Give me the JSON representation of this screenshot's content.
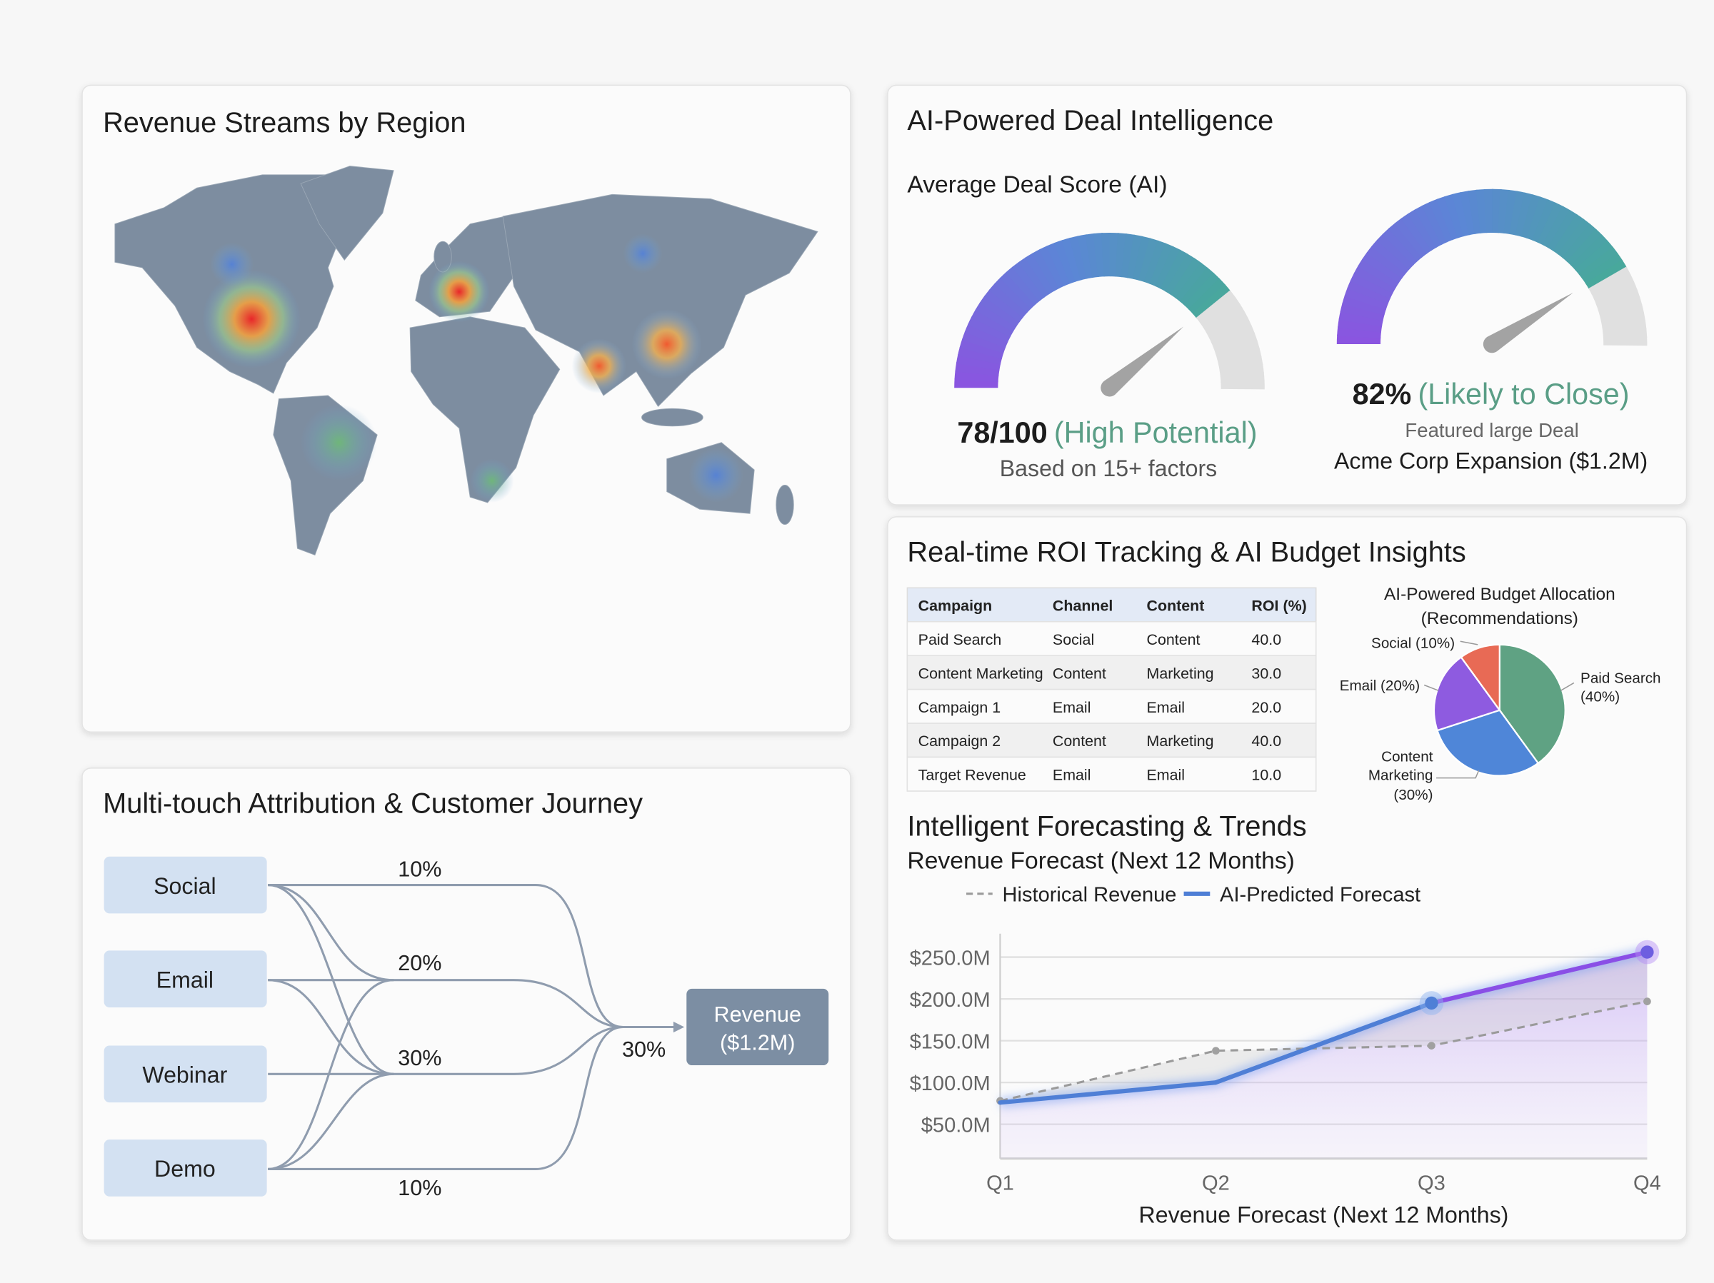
{
  "map_panel": {
    "title": "Revenue Streams by Region"
  },
  "deal_panel": {
    "title": "AI-Powered Deal Intelligence",
    "subtitle": "Average Deal Score (AI)",
    "gauges": [
      {
        "value": 78,
        "max": 100,
        "score_label": "78/100",
        "status_label": "(High Potential)",
        "caption": "Based on 15+ factors"
      },
      {
        "value": 82,
        "max": 100,
        "score_label": "82%",
        "status_label": "(Likely to Close)",
        "caption": "Featured large Deal",
        "deal_name": "Acme Corp Expansion ($1.2M)"
      }
    ],
    "colors": {
      "gradient_start": "#8a55e0",
      "gradient_mid": "#5b86d6",
      "gradient_end": "#48a89c",
      "track": "#e0e0e0",
      "status": "#5a9e86"
    }
  },
  "roi_panel": {
    "title": "Real-time ROI Tracking & AI Budget Insights",
    "table": {
      "headers": [
        "Campaign",
        "Channel",
        "Content",
        "ROI (%)"
      ],
      "rows": [
        [
          "Paid Search",
          "Social",
          "Content",
          "40.0"
        ],
        [
          "Content Marketing",
          "Content",
          "Marketing",
          "30.0"
        ],
        [
          "Campaign 1",
          "Email",
          "Email",
          "20.0"
        ],
        [
          "Campaign 2",
          "Content",
          "Marketing",
          "40.0"
        ],
        [
          "Target Revenue",
          "Email",
          "Email",
          "10.0"
        ]
      ]
    },
    "forecast_title": "Intelligent Forecasting & Trends",
    "forecast_subtitle": "Revenue Forecast (Next 12 Months)"
  },
  "attribution_panel": {
    "title": "Multi-touch Attribution & Customer Journey",
    "sources": [
      "Social",
      "Email",
      "Webinar",
      "Demo"
    ],
    "percent_labels": [
      "10%",
      "20%",
      "30%",
      "10%"
    ],
    "merge_label": "30%",
    "target_line1": "Revenue",
    "target_line2": "($1.2M)"
  },
  "chart_data": [
    {
      "type": "pie",
      "title": "AI-Powered Budget Allocation (Recommendations)",
      "title_line1": "AI-Powered Budget Allocation",
      "title_line2": "(Recommendations)",
      "slices": [
        {
          "label": "Paid Search",
          "label_pct": "(40%)",
          "value": 40,
          "color": "#5fa283"
        },
        {
          "label": "Content Marketing",
          "label_pct": "(30%)",
          "value": 30,
          "color": "#4f86d8"
        },
        {
          "label": "Email",
          "label_pct": "(20%)",
          "value": 20,
          "color": "#8e5be0"
        },
        {
          "label": "Social",
          "label_pct": "(10%)",
          "value": 10,
          "color": "#e86a55"
        }
      ],
      "slice_labels": [
        "Paid Search",
        "(40%)",
        "Content",
        "Marketing",
        "(30%)",
        "Email (20%)",
        "Social (10%)"
      ]
    },
    {
      "type": "line",
      "title": "Revenue Forecast (Next 12 Months)",
      "xlabel": "Revenue Forecast (Next 12 Months)",
      "ylabel": "",
      "categories": [
        "Q1",
        "Q2",
        "Q3",
        "Q4"
      ],
      "y_ticks": [
        "$50.0M",
        "$100.0M",
        "$150.0M",
        "$200.0M",
        "$250.0M"
      ],
      "y_tick_values": [
        50,
        100,
        150,
        200,
        250
      ],
      "ylim": [
        9,
        278
      ],
      "grid": true,
      "legend": "top",
      "series": [
        {
          "name": "Historical Revenue",
          "values": [
            78,
            138,
            144,
            197
          ],
          "color": "#9a9a9a",
          "style": "dashed"
        },
        {
          "name": "AI-Predicted Forecast",
          "values": [
            76,
            100,
            195,
            256
          ],
          "color": "#4f7fd6",
          "color_end": "#8a4fe6",
          "style": "solid"
        }
      ]
    }
  ]
}
